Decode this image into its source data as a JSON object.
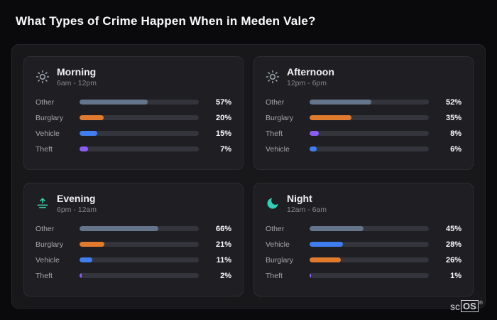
{
  "title": "What Types of Crime Happen When in Meden Vale?",
  "chart_data": [
    {
      "type": "bar",
      "orientation": "horizontal",
      "title": "Morning",
      "subtitle": "6am - 12pm",
      "icon": "sun-icon",
      "icon_color": "#9aa0a8",
      "categories": [
        "Other",
        "Burglary",
        "Vehicle",
        "Theft"
      ],
      "values": [
        57,
        20,
        15,
        7
      ],
      "labels": [
        "57%",
        "20%",
        "15%",
        "7%"
      ],
      "colors": [
        "#64748b",
        "#e07b2d",
        "#3e7ef0",
        "#8b5cf6"
      ],
      "xlim": [
        0,
        100
      ]
    },
    {
      "type": "bar",
      "orientation": "horizontal",
      "title": "Afternoon",
      "subtitle": "12pm - 6pm",
      "icon": "sun-icon",
      "icon_color": "#9aa0a8",
      "categories": [
        "Other",
        "Burglary",
        "Theft",
        "Vehicle"
      ],
      "values": [
        52,
        35,
        8,
        6
      ],
      "labels": [
        "52%",
        "35%",
        "8%",
        "6%"
      ],
      "colors": [
        "#64748b",
        "#e07b2d",
        "#8b5cf6",
        "#3e7ef0"
      ],
      "xlim": [
        0,
        100
      ]
    },
    {
      "type": "bar",
      "orientation": "horizontal",
      "title": "Evening",
      "subtitle": "6pm - 12am",
      "icon": "sunset-icon",
      "icon_color": "#35c9a3",
      "categories": [
        "Other",
        "Burglary",
        "Vehicle",
        "Theft"
      ],
      "values": [
        66,
        21,
        11,
        2
      ],
      "labels": [
        "66%",
        "21%",
        "11%",
        "2%"
      ],
      "colors": [
        "#64748b",
        "#e07b2d",
        "#3e7ef0",
        "#8b5cf6"
      ],
      "xlim": [
        0,
        100
      ]
    },
    {
      "type": "bar",
      "orientation": "horizontal",
      "title": "Night",
      "subtitle": "12am - 6am",
      "icon": "moon-icon",
      "icon_color": "#2fd0b4",
      "categories": [
        "Other",
        "Vehicle",
        "Burglary",
        "Theft"
      ],
      "values": [
        45,
        28,
        26,
        1
      ],
      "labels": [
        "45%",
        "28%",
        "26%",
        "1%"
      ],
      "colors": [
        "#64748b",
        "#3e7ef0",
        "#e07b2d",
        "#8b5cf6"
      ],
      "xlim": [
        0,
        100
      ]
    }
  ],
  "logo": {
    "prefix": "sc",
    "suffix": "OS",
    "reg": "®"
  }
}
